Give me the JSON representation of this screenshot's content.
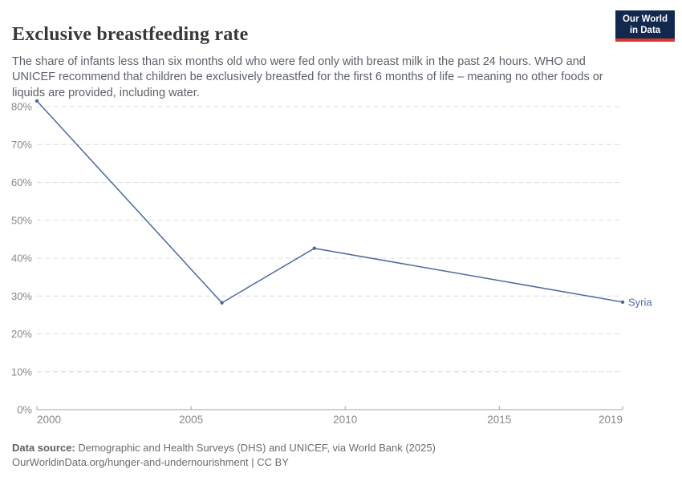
{
  "header": {
    "title": "Exclusive breastfeeding rate",
    "subtitle": "The share of infants less than six months old who were fed only with breast milk in the past 24 hours. WHO and UNICEF recommend that children be exclusively breastfed for the first 6 months of life – meaning no other foods or liquids are provided, including water.",
    "logo": {
      "line1": "Our World",
      "line2": "in Data",
      "bg_color": "#12294f",
      "accent_color": "#dc352c"
    }
  },
  "chart_data": {
    "type": "line",
    "title": "Exclusive breastfeeding rate",
    "xlabel": "",
    "ylabel": "",
    "xlim": [
      2000,
      2019
    ],
    "ylim": [
      0,
      80
    ],
    "x_ticks": [
      2000,
      2005,
      2010,
      2015,
      2019
    ],
    "y_ticks": [
      0,
      10,
      20,
      30,
      40,
      50,
      60,
      70,
      80
    ],
    "y_tick_suffix": "%",
    "grid": "horizontal-dashed",
    "legend_position": "end-of-line-label",
    "series": [
      {
        "name": "Syria",
        "color": "#4C6A9C",
        "points": [
          [
            2000,
            81.5
          ],
          [
            2006,
            28.2
          ],
          [
            2009,
            42.6
          ],
          [
            2019,
            28.4
          ]
        ]
      }
    ]
  },
  "footer": {
    "datasource_label": "Data source:",
    "datasource_text": " Demographic and Health Surveys (DHS) and UNICEF, via World Bank (2025)",
    "link_text": "OurWorldinData.org/hunger-and-undernourishment",
    "license_text": " | CC BY"
  },
  "colors": {
    "line": "#4C6A9C",
    "grid": "#dcdcdc",
    "axis": "#a3a3a3",
    "tick_label": "#878787",
    "title": "#373737",
    "subtitle": "#5b6169",
    "footer": "#6c6c6c"
  }
}
